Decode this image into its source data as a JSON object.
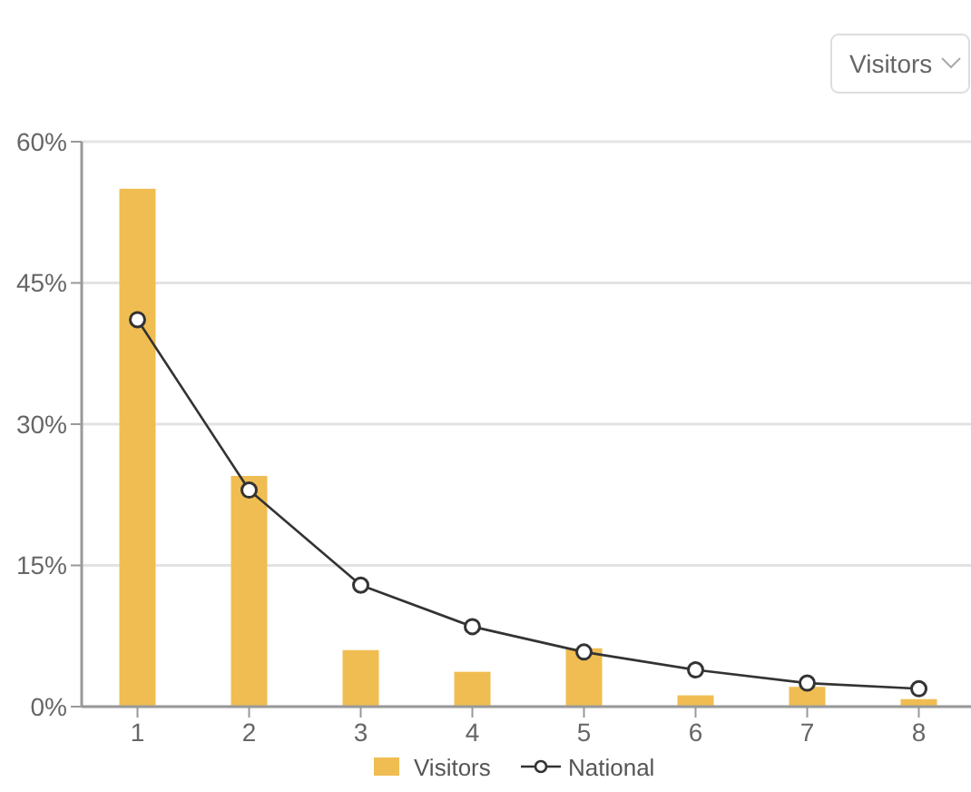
{
  "chart_data": {
    "type": "bar",
    "annotations": [
      "Visitors"
    ],
    "categories": [
      "1",
      "2",
      "3",
      "4",
      "5",
      "6",
      "7",
      "8"
    ],
    "series": [
      {
        "name": "Visitors",
        "color": "#f0bd52",
        "values": [
          55.0,
          24.5,
          6.0,
          3.7,
          6.2,
          1.2,
          2.1,
          0.8
        ]
      },
      {
        "name": "National",
        "type": "line",
        "color": "#333333",
        "values": [
          41.1,
          23.0,
          12.9,
          8.5,
          5.8,
          3.9,
          2.5,
          1.9
        ]
      }
    ],
    "ylim": [
      0,
      60
    ],
    "yticks": [
      {
        "value": 0,
        "label": "0%"
      },
      {
        "value": 15,
        "label": "15%"
      },
      {
        "value": 30,
        "label": "30%"
      },
      {
        "value": 45,
        "label": "45%"
      },
      {
        "value": 60,
        "label": "60%"
      }
    ],
    "grid": "y",
    "legend": "bottom",
    "marker": "circle"
  }
}
